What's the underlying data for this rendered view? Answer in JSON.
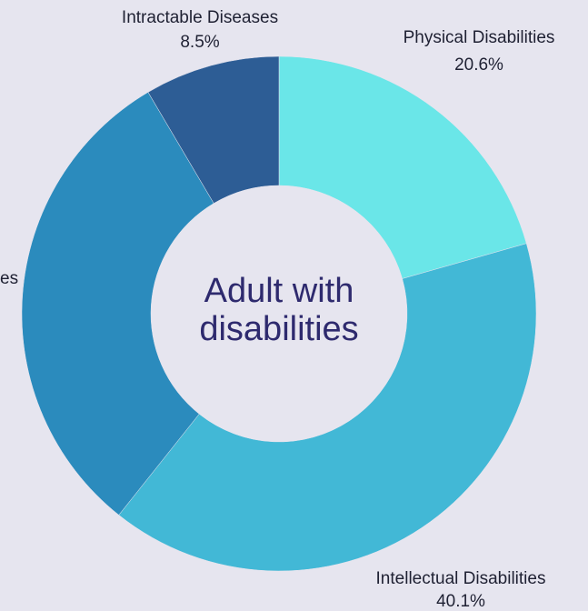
{
  "chart_data": {
    "type": "pie",
    "center_label": [
      "Adult with",
      "disabilities"
    ],
    "slices": [
      {
        "label": "Physical Disabilities",
        "value": 20.6,
        "value_label": "20.6%",
        "color": "#6ae6e8"
      },
      {
        "label": "Intellectual Disabilities",
        "value": 40.1,
        "value_label": "40.1%",
        "color": "#42b8d6"
      },
      {
        "label": "",
        "label_fragment": "es",
        "value": 30.8,
        "value_label": "",
        "color": "#2b8bbd"
      },
      {
        "label": "Intractable Diseases",
        "value": 8.5,
        "value_label": "8.5%",
        "color": "#2d5d95"
      }
    ]
  }
}
